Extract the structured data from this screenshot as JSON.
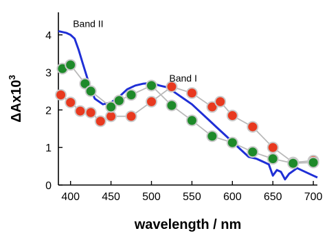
{
  "chart_data": {
    "type": "line",
    "title": "",
    "xlabel": "wavelength / nm",
    "ylabel": "ΔAx10",
    "ylabel_superscript": "3",
    "xlim": [
      385,
      705
    ],
    "ylim": [
      0,
      4.6
    ],
    "x_ticks": [
      400,
      450,
      500,
      550,
      600,
      650,
      700
    ],
    "y_ticks": [
      0,
      1,
      2,
      3,
      4
    ],
    "grid": false,
    "legend": "none",
    "annotations": [
      {
        "text": "Band II",
        "x": 403,
        "y": 4.3
      },
      {
        "text": "Band I",
        "x": 522,
        "y": 2.85
      }
    ],
    "series": [
      {
        "style": "line",
        "color": "#1f2fd6",
        "x": [
          385,
          395,
          400,
          405,
          410,
          415,
          420,
          425,
          430,
          440,
          450,
          460,
          470,
          480,
          490,
          500,
          510,
          520,
          530,
          540,
          550,
          560,
          570,
          580,
          590,
          600,
          610,
          620,
          630,
          640,
          645,
          650,
          655,
          660,
          665,
          670,
          680,
          690,
          700,
          705
        ],
        "values": [
          4.1,
          4.05,
          4.0,
          3.9,
          3.6,
          3.25,
          2.9,
          2.55,
          2.3,
          2.15,
          2.2,
          2.35,
          2.55,
          2.65,
          2.7,
          2.72,
          2.65,
          2.6,
          2.45,
          2.3,
          2.15,
          1.95,
          1.75,
          1.55,
          1.35,
          1.15,
          0.95,
          0.75,
          0.7,
          0.6,
          0.55,
          0.25,
          0.4,
          0.35,
          0.15,
          0.3,
          0.45,
          0.35,
          0.25,
          0.2
        ]
      },
      {
        "style": "markers+line",
        "color": "#e8391f",
        "x": [
          388,
          400,
          412,
          425,
          437,
          450,
          475,
          500,
          525,
          550,
          575,
          585,
          600,
          625,
          650,
          675,
          700
        ],
        "values": [
          2.4,
          2.2,
          1.97,
          1.93,
          1.7,
          1.83,
          1.83,
          2.22,
          2.62,
          2.45,
          2.08,
          2.22,
          1.85,
          1.55,
          1.0,
          0.6,
          0.65
        ]
      },
      {
        "style": "markers+line",
        "color": "#1e8a2a",
        "x": [
          390,
          400,
          418,
          425,
          450,
          460,
          475,
          500,
          525,
          550,
          575,
          600,
          625,
          650,
          675,
          700
        ],
        "values": [
          3.1,
          3.2,
          2.7,
          2.5,
          2.08,
          2.25,
          2.4,
          2.65,
          2.12,
          1.72,
          1.3,
          1.13,
          0.88,
          0.7,
          0.58,
          0.6
        ]
      }
    ]
  }
}
